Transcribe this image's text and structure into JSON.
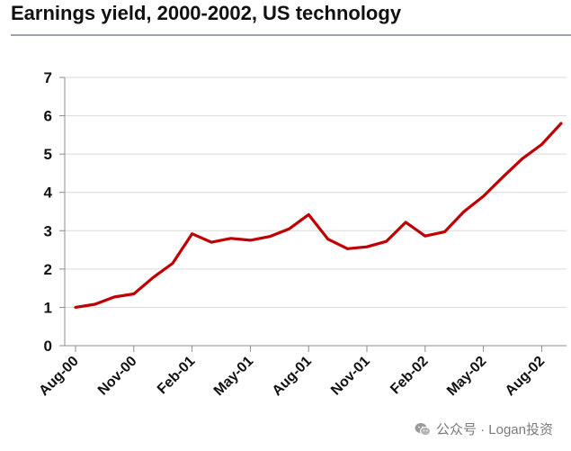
{
  "chart_data": {
    "type": "line",
    "title": "Earnings yield, 2000-2002, US technology",
    "xlabel": "",
    "ylabel": "",
    "ylim": [
      0,
      7
    ],
    "y_ticks": [
      "0",
      "1",
      "2",
      "3",
      "4",
      "5",
      "6",
      "7"
    ],
    "grid": "horizontal",
    "legend": "none",
    "x_tick_labels": [
      "Aug-00",
      "Nov-00",
      "Feb-01",
      "May-01",
      "Aug-01",
      "Nov-01",
      "Feb-02",
      "May-02",
      "Aug-02"
    ],
    "x_tick_months": [
      0,
      3,
      6,
      9,
      12,
      15,
      18,
      21,
      24
    ],
    "x_max_month": 25,
    "series": [
      {
        "name": "Earnings yield",
        "color": "#c00000",
        "x": [
          0,
          1,
          2,
          3,
          4,
          5,
          6,
          7,
          8,
          9,
          10,
          11,
          12,
          13,
          14,
          15,
          16,
          17,
          18,
          19,
          20,
          21,
          22,
          23,
          24,
          25
        ],
        "values": [
          1.0,
          1.08,
          1.27,
          1.35,
          1.78,
          2.15,
          2.92,
          2.7,
          2.8,
          2.75,
          2.85,
          3.05,
          3.42,
          2.78,
          2.53,
          2.58,
          2.72,
          3.22,
          2.86,
          2.97,
          3.5,
          3.9,
          4.4,
          4.88,
          5.25,
          5.8
        ]
      }
    ]
  },
  "watermark": {
    "icon": "wechat-icon",
    "text": "公众号 · Logan投资"
  }
}
